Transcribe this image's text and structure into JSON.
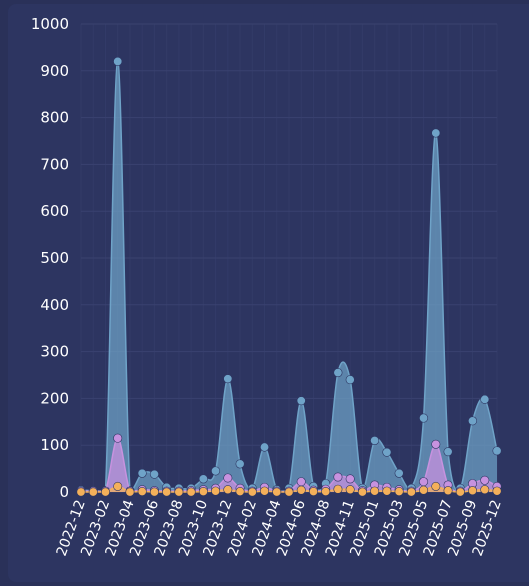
{
  "chart_data": {
    "type": "area",
    "colors": {
      "background": "#2d3561",
      "grid": "#3a4270",
      "text": "#ffffff"
    },
    "ylim": [
      0,
      1000
    ],
    "yticks": [
      0,
      100,
      200,
      300,
      400,
      500,
      600,
      700,
      800,
      900,
      1000
    ],
    "grid": true,
    "x_tick_labels": [
      "2022-12",
      "2023-02",
      "2023-04",
      "2023-06",
      "2023-08",
      "2023-10",
      "2023-12",
      "2024-02",
      "2024-04",
      "2024-06",
      "2024-08",
      "2024-11",
      "2025-01",
      "2025-03",
      "2025-05",
      "2025-07",
      "2025-09",
      "2025-12"
    ],
    "series": [
      {
        "color": "#6fa3c8",
        "values": [
          4,
          3,
          3,
          920,
          3,
          40,
          38,
          10,
          8,
          8,
          28,
          45,
          242,
          60,
          8,
          96,
          5,
          8,
          195,
          12,
          18,
          255,
          240,
          8,
          110,
          85,
          40,
          8,
          158,
          767,
          86,
          8,
          152,
          198,
          88
        ]
      },
      {
        "color": "#c792df",
        "values": [
          2,
          2,
          2,
          115,
          2,
          5,
          3,
          2,
          2,
          3,
          5,
          8,
          30,
          8,
          2,
          10,
          2,
          2,
          22,
          4,
          6,
          32,
          28,
          3,
          15,
          10,
          5,
          2,
          22,
          102,
          15,
          2,
          18,
          25,
          12
        ]
      },
      {
        "color": "#f4b05a",
        "values": [
          0,
          0,
          0,
          12,
          0,
          1,
          0,
          0,
          0,
          0,
          1,
          2,
          5,
          1,
          0,
          2,
          0,
          0,
          4,
          1,
          1,
          6,
          5,
          0,
          2,
          2,
          1,
          0,
          4,
          12,
          3,
          0,
          3,
          5,
          2
        ]
      }
    ]
  }
}
